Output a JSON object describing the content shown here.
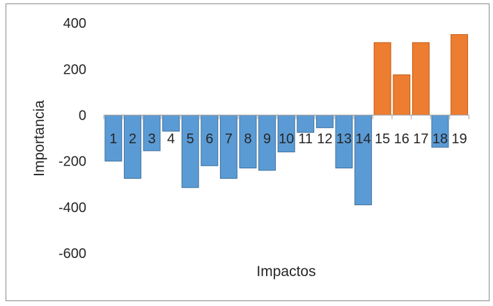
{
  "chart_data": {
    "type": "bar",
    "title": "",
    "xlabel": "Impactos",
    "ylabel": "Importancia",
    "categories": [
      "1",
      "2",
      "3",
      "4",
      "5",
      "6",
      "7",
      "8",
      "9",
      "10",
      "11",
      "12",
      "13",
      "14",
      "15",
      "16",
      "17",
      "18",
      "19"
    ],
    "values": [
      -200,
      -275,
      -155,
      -70,
      -315,
      -220,
      -275,
      -230,
      -240,
      -160,
      -75,
      -55,
      -230,
      -390,
      315,
      175,
      315,
      -140,
      350
    ],
    "yticks": [
      400,
      200,
      0,
      -200,
      -400,
      -600
    ],
    "ylim": [
      -700,
      440
    ],
    "grid": false,
    "legend": false,
    "colors": {
      "positive_fill": "#ED7D31",
      "positive_border": "#C55A11",
      "negative_fill": "#5B9BD5",
      "negative_border": "#41719C",
      "axis_line": "#A6A6A6",
      "text": "#262626",
      "chart_border": "#898989",
      "background": "#FFFFFF"
    }
  }
}
